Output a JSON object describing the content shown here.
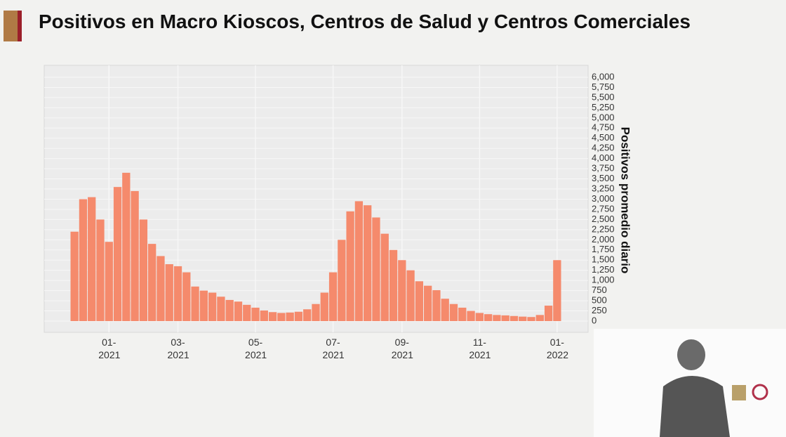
{
  "chart_data": {
    "type": "bar",
    "title": "Positivos en Macro Kioscos, Centros de Salud y Centros Comerciales",
    "y_axis_label": "Positivos promedio diario",
    "categories": [
      null,
      null,
      null,
      null,
      "01-2021",
      null,
      null,
      null,
      null,
      null,
      null,
      null,
      "03-2021",
      null,
      null,
      null,
      null,
      null,
      null,
      null,
      null,
      "05-2021",
      null,
      null,
      null,
      null,
      null,
      null,
      null,
      null,
      "07-2021",
      null,
      null,
      null,
      null,
      null,
      null,
      null,
      "09-2021",
      null,
      null,
      null,
      null,
      null,
      null,
      null,
      null,
      "11-2021",
      null,
      null,
      null,
      null,
      null,
      null,
      null,
      null,
      "01-2022"
    ],
    "values": [
      2200,
      3000,
      3050,
      2500,
      1950,
      3300,
      3650,
      3200,
      2500,
      1900,
      1600,
      1400,
      1350,
      1200,
      850,
      750,
      700,
      600,
      520,
      480,
      400,
      330,
      260,
      220,
      200,
      210,
      230,
      290,
      420,
      700,
      1200,
      2000,
      2700,
      2950,
      2850,
      2550,
      2150,
      1750,
      1500,
      1250,
      980,
      870,
      760,
      550,
      420,
      330,
      250,
      200,
      170,
      150,
      140,
      125,
      110,
      100,
      150,
      380,
      1500
    ],
    "color": "#f58a6c",
    "ylim": [
      0,
      6000
    ],
    "yticks": [
      0,
      250,
      500,
      750,
      {
        "value": 1000,
        "label": "1,000"
      },
      {
        "value": 1250,
        "label": "1,250"
      },
      {
        "value": 1500,
        "label": "1,500"
      },
      {
        "value": 1750,
        "label": "1,750"
      },
      {
        "value": 2000,
        "label": "2,000"
      },
      {
        "value": 2250,
        "label": "2,250"
      },
      {
        "value": 2500,
        "label": "2,500"
      },
      {
        "value": 2750,
        "label": "2,750"
      },
      {
        "value": 3000,
        "label": "3,000"
      },
      {
        "value": 3250,
        "label": "3,250"
      },
      {
        "value": 3500,
        "label": "3,500"
      },
      {
        "value": 3750,
        "label": "3,750"
      },
      {
        "value": 4000,
        "label": "4,000"
      },
      {
        "value": 4250,
        "label": "4,250"
      },
      {
        "value": 4500,
        "label": "4,500"
      },
      {
        "value": 4750,
        "label": "4,750"
      },
      {
        "value": 5000,
        "label": "5,000"
      },
      {
        "value": 5250,
        "label": "5,250"
      },
      {
        "value": 5500,
        "label": "5,500"
      },
      {
        "value": 5750,
        "label": "5,750"
      },
      {
        "value": 6000,
        "label": "6,000"
      }
    ],
    "grid": true
  }
}
